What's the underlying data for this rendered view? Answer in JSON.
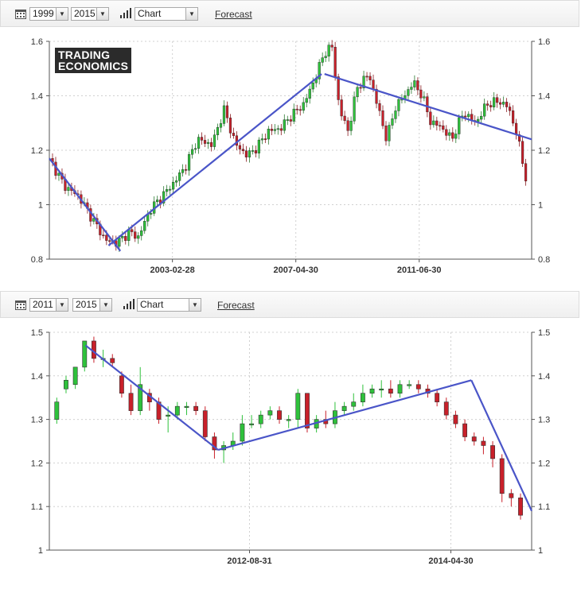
{
  "panels": [
    {
      "toolbar": {
        "start_year": "1999",
        "end_year": "2015",
        "chart_type": "Chart",
        "forecast_label": "Forecast"
      },
      "logo": {
        "line1": "TRADING",
        "line2": "ECONOMICS"
      }
    },
    {
      "toolbar": {
        "start_year": "2011",
        "end_year": "2015",
        "chart_type": "Chart",
        "forecast_label": "Forecast"
      }
    }
  ],
  "colors": {
    "up": "#2ec13b",
    "down": "#c8202a",
    "trendline": "#4a55c8",
    "grid": "#d0d0d0"
  },
  "chart_data": [
    {
      "type": "candlestick",
      "title": "",
      "xlabel": "",
      "ylabel": "",
      "x_range": [
        1999.0,
        2015.3
      ],
      "ylim": [
        0.8,
        1.6
      ],
      "yticks": [
        0.8,
        1,
        1.2,
        1.4,
        1.6
      ],
      "ytick_labels": [
        "0.8",
        "1",
        "1.2",
        "1.4",
        "1.6"
      ],
      "xticks": [
        {
          "label": "2003-02-28",
          "t": 2003.16
        },
        {
          "label": "2007-04-30",
          "t": 2007.33
        },
        {
          "label": "2011-06-30",
          "t": 2011.5
        }
      ],
      "grid": true,
      "series": [
        {
          "kind": "close_path",
          "t": [
            1999.0,
            1999.5,
            2000.0,
            2000.5,
            2000.9,
            2001.3,
            2001.7,
            2002.0,
            2002.4,
            2002.8,
            2003.2,
            2003.6,
            2004.0,
            2004.5,
            2004.9,
            2005.3,
            2005.7,
            2006.0,
            2006.4,
            2006.8,
            2007.2,
            2007.6,
            2008.0,
            2008.3,
            2008.55,
            2008.8,
            2009.1,
            2009.4,
            2009.8,
            2010.1,
            2010.4,
            2010.7,
            2011.0,
            2011.3,
            2011.6,
            2011.9,
            2012.2,
            2012.6,
            2013.0,
            2013.4,
            2013.8,
            2014.2,
            2014.5,
            2014.8,
            2015.1
          ],
          "close": [
            1.17,
            1.07,
            1.03,
            0.94,
            0.87,
            0.86,
            0.9,
            0.88,
            0.98,
            1.03,
            1.08,
            1.14,
            1.24,
            1.22,
            1.35,
            1.22,
            1.18,
            1.21,
            1.27,
            1.28,
            1.33,
            1.37,
            1.47,
            1.56,
            1.58,
            1.35,
            1.27,
            1.43,
            1.48,
            1.36,
            1.24,
            1.36,
            1.4,
            1.45,
            1.4,
            1.3,
            1.29,
            1.24,
            1.34,
            1.3,
            1.37,
            1.38,
            1.36,
            1.26,
            1.1
          ]
        }
      ],
      "trendlines": [
        {
          "points": [
            [
              1999.0,
              1.17
            ],
            [
              2001.4,
              0.83
            ]
          ]
        },
        {
          "points": [
            [
              2001.0,
              0.85
            ],
            [
              2008.2,
              1.48
            ]
          ]
        },
        {
          "points": [
            [
              2008.3,
              1.48
            ],
            [
              2015.3,
              1.24
            ]
          ]
        }
      ]
    },
    {
      "type": "candlestick",
      "title": "",
      "xlabel": "",
      "ylabel": "",
      "x_range": [
        2011.0,
        2015.0
      ],
      "ylim": [
        1.0,
        1.5
      ],
      "yticks": [
        1,
        1.1,
        1.2,
        1.3,
        1.4,
        1.5
      ],
      "ytick_labels": [
        "1",
        "1.1",
        "1.2",
        "1.3",
        "1.4",
        "1.5"
      ],
      "xticks": [
        {
          "label": "2012-08-31",
          "t": 2012.66
        },
        {
          "label": "2014-04-30",
          "t": 2014.33
        }
      ],
      "grid": true,
      "series": [
        {
          "kind": "monthly_candles",
          "t_start": 2011.0,
          "t_step": 0.0833,
          "open": [
            1.3,
            1.37,
            1.38,
            1.42,
            1.48,
            1.44,
            1.44,
            1.4,
            1.36,
            1.32,
            1.36,
            1.34,
            1.31,
            1.31,
            1.33,
            1.33,
            1.32,
            1.26,
            1.23,
            1.24,
            1.25,
            1.29,
            1.29,
            1.31,
            1.32,
            1.3,
            1.3,
            1.36,
            1.28,
            1.3,
            1.29,
            1.32,
            1.33,
            1.34,
            1.36,
            1.37,
            1.37,
            1.36,
            1.38,
            1.38,
            1.37,
            1.36,
            1.34,
            1.31,
            1.29,
            1.26,
            1.25,
            1.24,
            1.21,
            1.13,
            1.12
          ],
          "close": [
            1.34,
            1.39,
            1.42,
            1.48,
            1.44,
            1.44,
            1.43,
            1.36,
            1.32,
            1.38,
            1.34,
            1.3,
            1.31,
            1.33,
            1.33,
            1.32,
            1.26,
            1.23,
            1.24,
            1.25,
            1.29,
            1.29,
            1.31,
            1.32,
            1.3,
            1.3,
            1.36,
            1.28,
            1.3,
            1.29,
            1.32,
            1.33,
            1.34,
            1.36,
            1.37,
            1.37,
            1.36,
            1.38,
            1.38,
            1.37,
            1.36,
            1.34,
            1.31,
            1.29,
            1.26,
            1.25,
            1.24,
            1.21,
            1.13,
            1.12,
            1.08
          ],
          "high": [
            1.35,
            1.4,
            1.42,
            1.48,
            1.49,
            1.46,
            1.45,
            1.41,
            1.38,
            1.42,
            1.37,
            1.35,
            1.33,
            1.34,
            1.34,
            1.34,
            1.33,
            1.27,
            1.25,
            1.27,
            1.31,
            1.31,
            1.32,
            1.33,
            1.33,
            1.31,
            1.37,
            1.36,
            1.31,
            1.32,
            1.34,
            1.34,
            1.36,
            1.38,
            1.38,
            1.39,
            1.39,
            1.39,
            1.39,
            1.39,
            1.38,
            1.37,
            1.35,
            1.32,
            1.3,
            1.27,
            1.26,
            1.25,
            1.22,
            1.14,
            1.13
          ],
          "low": [
            1.29,
            1.36,
            1.37,
            1.41,
            1.43,
            1.42,
            1.42,
            1.35,
            1.31,
            1.31,
            1.32,
            1.29,
            1.27,
            1.3,
            1.31,
            1.31,
            1.25,
            1.21,
            1.2,
            1.23,
            1.24,
            1.28,
            1.28,
            1.3,
            1.29,
            1.28,
            1.28,
            1.27,
            1.27,
            1.28,
            1.28,
            1.31,
            1.32,
            1.33,
            1.35,
            1.35,
            1.35,
            1.35,
            1.37,
            1.36,
            1.35,
            1.33,
            1.3,
            1.28,
            1.25,
            1.24,
            1.22,
            1.19,
            1.11,
            1.1,
            1.07
          ]
        }
      ],
      "trendlines": [
        {
          "points": [
            [
              2011.3,
              1.47
            ],
            [
              2012.4,
              1.23
            ]
          ]
        },
        {
          "points": [
            [
              2012.4,
              1.23
            ],
            [
              2014.5,
              1.39
            ]
          ]
        },
        {
          "points": [
            [
              2014.5,
              1.39
            ],
            [
              2015.0,
              1.09
            ]
          ]
        }
      ]
    }
  ]
}
